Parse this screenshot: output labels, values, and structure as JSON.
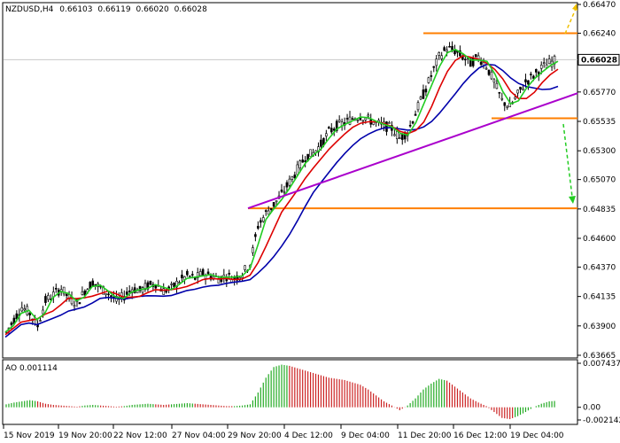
{
  "header": {
    "symbol": "NZDUSD,H4",
    "open": "0.66103",
    "high": "0.66119",
    "low": "0.66020",
    "close": "0.66028"
  },
  "ao_label": "AO 0.001114",
  "price_axis": {
    "ticks": [
      "0.66470",
      "0.66240",
      "0.65770",
      "0.65535",
      "0.65300",
      "0.65070",
      "0.64835",
      "0.64600",
      "0.64370",
      "0.64135",
      "0.63900",
      "0.63665"
    ],
    "current_label": "0.66028"
  },
  "ao_axis": {
    "ticks": [
      "0.007437",
      "0.00",
      "-0.002142"
    ]
  },
  "time_axis": {
    "labels": [
      "15 Nov 2019",
      "19 Nov 20:00",
      "22 Nov 12:00",
      "27 Nov 04:00",
      "29 Nov 20:00",
      "4 Dec 12:00",
      "9 Dec 04:00",
      "11 Dec 20:00",
      "16 Dec 12:00",
      "19 Dec 04:00"
    ]
  },
  "colors": {
    "fast_ma": "#22cc22",
    "mid_ma": "#dd0000",
    "slow_ma": "#0000aa",
    "support_resistance": "#ff7f00",
    "trendline": "#aa00cc",
    "arrow_up": "#f0c000",
    "arrow_down": "#22cc22",
    "ao_up": "#22aa22",
    "ao_down": "#cc2222"
  },
  "chart_data": {
    "type": "candlestick",
    "price_range": [
      0.63665,
      0.6647
    ],
    "levels": [
      0.6624,
      0.6556,
      0.6484
    ],
    "trendline": [
      [
        0,
        0.6484
      ],
      [
        1,
        0.6576
      ]
    ],
    "current_price": 0.66028,
    "close_path": [
      0.6385,
      0.6395,
      0.6405,
      0.64,
      0.639,
      0.641,
      0.6415,
      0.642,
      0.6412,
      0.6408,
      0.6418,
      0.6425,
      0.642,
      0.6416,
      0.641,
      0.6414,
      0.642,
      0.6418,
      0.6422,
      0.6424,
      0.6418,
      0.642,
      0.6426,
      0.643,
      0.6428,
      0.6432,
      0.643,
      0.6428,
      0.643,
      0.6428,
      0.6432,
      0.644,
      0.647,
      0.648,
      0.6487,
      0.6495,
      0.6505,
      0.6515,
      0.6525,
      0.6528,
      0.6535,
      0.6545,
      0.655,
      0.6552,
      0.6556,
      0.6558,
      0.6555,
      0.6552,
      0.655,
      0.6548,
      0.654,
      0.6545,
      0.656,
      0.6575,
      0.659,
      0.6605,
      0.6612,
      0.661,
      0.6605,
      0.66,
      0.6605,
      0.6598,
      0.6585,
      0.657,
      0.6565,
      0.6575,
      0.6585,
      0.659,
      0.6596,
      0.66,
      0.6603
    ],
    "ao_series": [
      0.0005,
      0.0008,
      0.001,
      0.0012,
      0.001,
      0.0006,
      0.0004,
      0.0003,
      0.0002,
      0.0001,
      0.0003,
      0.0004,
      0.0003,
      0.0002,
      0.0001,
      0.0002,
      0.0004,
      0.0005,
      0.0006,
      0.0005,
      0.0004,
      0.0005,
      0.0006,
      0.0007,
      0.0006,
      0.0005,
      0.0004,
      0.0003,
      0.0002,
      0.0002,
      0.0003,
      0.0005,
      0.0025,
      0.005,
      0.0068,
      0.0072,
      0.007,
      0.0066,
      0.0062,
      0.0058,
      0.0054,
      0.005,
      0.0048,
      0.0046,
      0.0042,
      0.0038,
      0.003,
      0.002,
      0.001,
      0.0003,
      -0.0005,
      0.0003,
      0.0015,
      0.003,
      0.004,
      0.0048,
      0.0045,
      0.0035,
      0.0025,
      0.0015,
      0.0008,
      0.0002,
      -0.0008,
      -0.0018,
      -0.002,
      -0.0015,
      -0.0008,
      0.0,
      0.0006,
      0.001,
      0.0011
    ]
  }
}
